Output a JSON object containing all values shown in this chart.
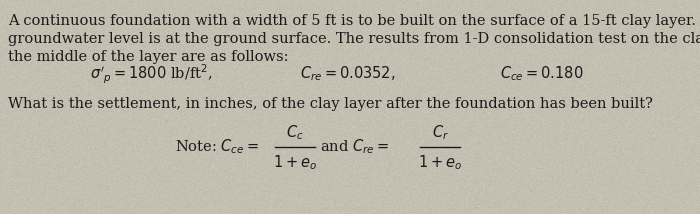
{
  "bg_color": "#cec8b8",
  "text_color": "#1a1a1a",
  "fig_width": 7.0,
  "fig_height": 2.14,
  "dpi": 100,
  "paragraph1": "A continuous foundation with a width of 5 ft is to be built on the surface of a 15-ft clay layer. The\ngroundwater level is at the ground surface. The results from 1-D consolidation test on the clay from\nthe middle of the layer are as follows:",
  "sigma_line": "$\\sigma'_p = 1800$ lb/ft$^2$,",
  "cre_line": "$C_{re} = 0.0352,$",
  "cce_line": "$C_{ce} = 0.180$",
  "question": "What is the settlement, in inches, of the clay layer after the foundation has been built?",
  "note_prefix": "Note: $C_{ce} =$",
  "note_frac1_num": "$C_c$",
  "note_frac1_den": "$1+e_o$",
  "note_and": "and $C_{re} =$",
  "note_frac2_num": "$C_r$",
  "note_frac2_den": "$1+e_o$",
  "font_size": 10.5,
  "small_font_size": 10.0
}
